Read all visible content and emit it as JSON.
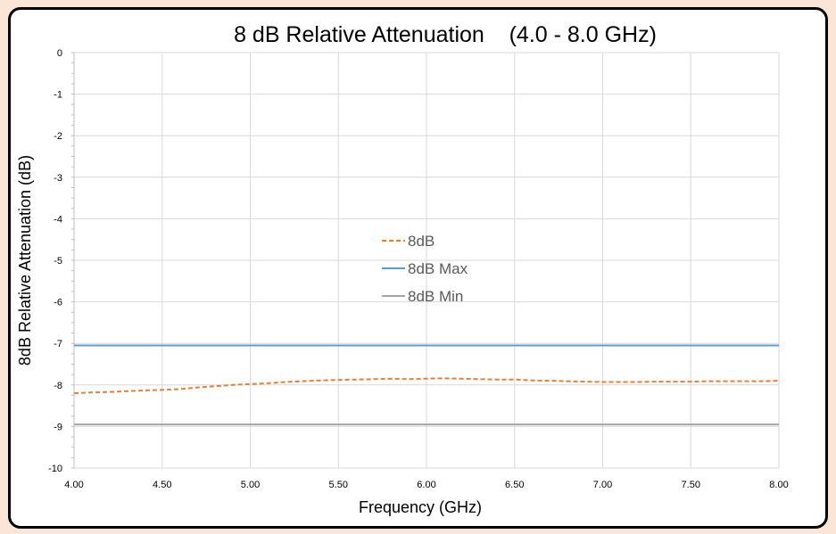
{
  "chart_data": {
    "type": "line",
    "title": "8 dB Relative Attenuation    (4.0 - 8.0 GHz)",
    "xlabel": "Frequency (GHz)",
    "ylabel": "8dB Relative Attenuation (dB)",
    "xlim": [
      4.0,
      8.0
    ],
    "ylim": [
      -10,
      0
    ],
    "x_ticks": [
      "4.00",
      "4.50",
      "5.00",
      "5.50",
      "6.00",
      "6.50",
      "7.00",
      "7.50",
      "8.00"
    ],
    "y_ticks": [
      "0",
      "-1",
      "-2",
      "-3",
      "-4",
      "-5",
      "-6",
      "-7",
      "-8",
      "-9",
      "-10"
    ],
    "grid": true,
    "legend_position": "center",
    "series": [
      {
        "name": "8dB",
        "color": "#ed7d31",
        "style": "dashed",
        "x": [
          4.0,
          4.1,
          4.2,
          4.3,
          4.4,
          4.5,
          4.6,
          4.7,
          4.8,
          4.9,
          5.0,
          5.1,
          5.2,
          5.3,
          5.4,
          5.5,
          5.6,
          5.7,
          5.8,
          5.9,
          6.0,
          6.1,
          6.2,
          6.3,
          6.4,
          6.5,
          6.6,
          6.7,
          6.8,
          6.9,
          7.0,
          7.1,
          7.2,
          7.3,
          7.4,
          7.5,
          7.6,
          7.7,
          7.8,
          7.9,
          8.0
        ],
        "values": [
          -8.2,
          -8.18,
          -8.17,
          -8.15,
          -8.13,
          -8.12,
          -8.1,
          -8.06,
          -8.03,
          -8.0,
          -7.98,
          -7.96,
          -7.93,
          -7.91,
          -7.89,
          -7.88,
          -7.87,
          -7.86,
          -7.85,
          -7.86,
          -7.85,
          -7.84,
          -7.85,
          -7.86,
          -7.87,
          -7.87,
          -7.89,
          -7.9,
          -7.91,
          -7.92,
          -7.93,
          -7.93,
          -7.93,
          -7.92,
          -7.92,
          -7.92,
          -7.91,
          -7.91,
          -7.91,
          -7.91,
          -7.9
        ]
      },
      {
        "name": "8dB Max",
        "color": "#5b9bd5",
        "style": "solid",
        "x": [
          4.0,
          8.0
        ],
        "values": [
          -7.05,
          -7.05
        ]
      },
      {
        "name": "8dB Min",
        "color": "#a5a5a5",
        "style": "solid",
        "x": [
          4.0,
          8.0
        ],
        "values": [
          -8.95,
          -8.95
        ]
      }
    ]
  }
}
